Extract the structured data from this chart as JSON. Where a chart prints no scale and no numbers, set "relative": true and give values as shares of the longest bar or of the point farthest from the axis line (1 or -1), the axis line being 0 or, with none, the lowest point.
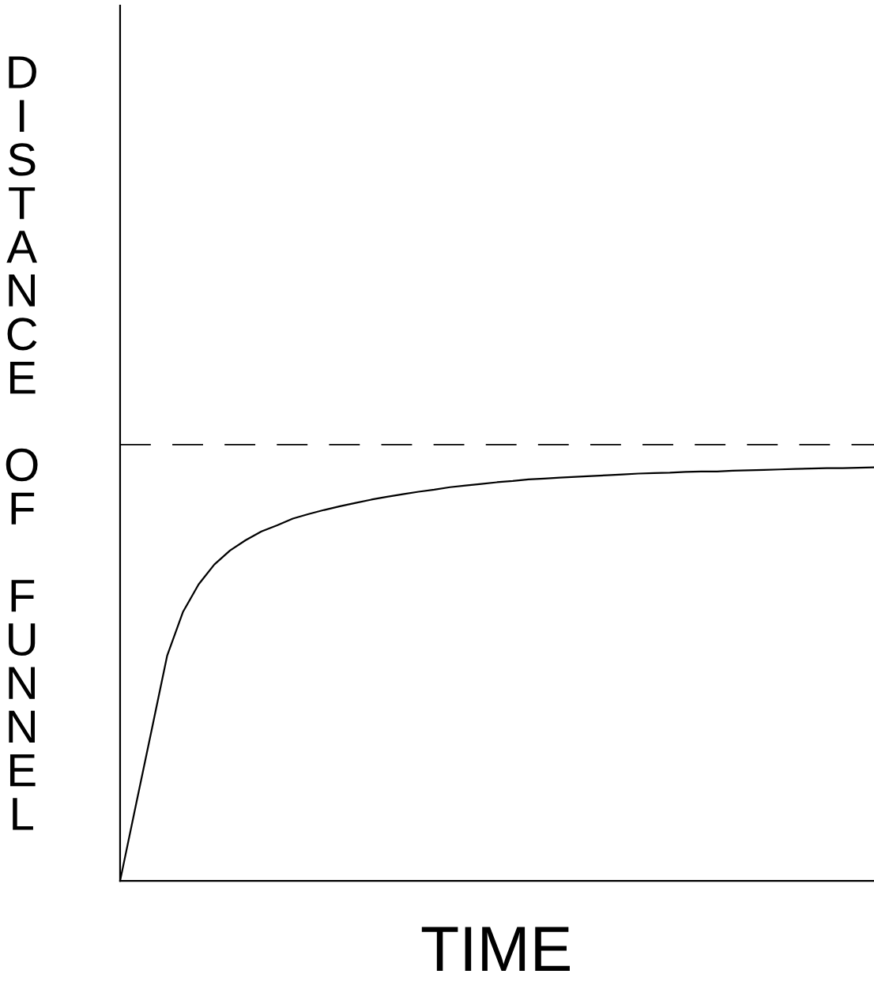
{
  "chart_data": {
    "type": "line",
    "relative": true,
    "xlabel": "TIME",
    "ylabel": "DISTANCE OF FUNNEL",
    "categories": [
      null,
      null,
      null,
      null,
      null,
      null,
      null,
      null,
      null,
      null,
      null,
      null,
      null,
      null,
      null,
      null,
      null,
      null,
      null,
      null,
      null,
      null,
      null,
      null,
      null,
      null,
      null,
      null,
      null,
      null,
      null,
      null,
      null,
      null,
      null,
      null,
      null,
      null,
      null,
      null,
      null,
      null,
      null,
      null,
      null,
      null,
      null,
      null,
      null
    ],
    "series": [
      {
        "color": "#000000",
        "values": [
          0,
          0.182,
          0.363,
          0.545,
          0.65,
          0.717,
          0.765,
          0.799,
          0.824,
          0.845,
          0.86,
          0.876,
          0.887,
          0.897,
          0.906,
          0.914,
          0.922,
          0.929,
          0.935,
          0.941,
          0.946,
          0.952,
          0.956,
          0.96,
          0.964,
          0.967,
          0.971,
          0.973,
          0.975,
          0.977,
          0.979,
          0.981,
          0.983,
          0.985,
          0.986,
          0.987,
          0.989,
          0.99,
          0.99,
          0.992,
          0.993,
          0.994,
          0.995,
          0.996,
          0.997,
          0.998,
          0.998,
          0.999,
          1.0
        ]
      }
    ],
    "ref_lines": [
      {
        "axis": "y",
        "value": 1.055,
        "label": null,
        "color": "#000000",
        "line_style": "dashed"
      }
    ],
    "legend": false,
    "marker": "none",
    "line_style": "solid"
  }
}
